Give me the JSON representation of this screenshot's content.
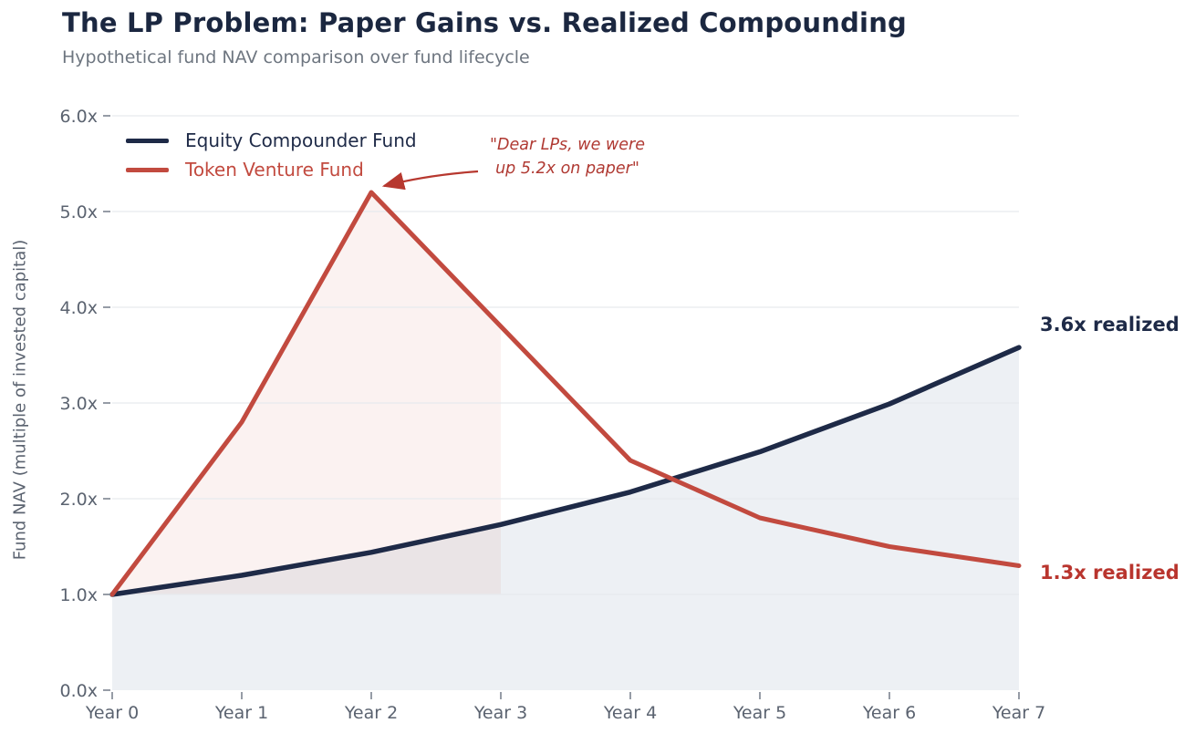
{
  "header": {
    "title": "The LP Problem: Paper Gains vs. Realized Compounding",
    "subtitle": "Hypothetical fund NAV comparison over fund lifecycle"
  },
  "chart_data": {
    "type": "line",
    "title": "The LP Problem: Paper Gains vs. Realized Compounding",
    "subtitle": "Hypothetical fund NAV comparison over fund lifecycle",
    "xlabel": "",
    "ylabel": "Fund NAV (multiple of invested capital)",
    "categories": [
      "Year 0",
      "Year 1",
      "Year 2",
      "Year 3",
      "Year 4",
      "Year 5",
      "Year 6",
      "Year 7"
    ],
    "x": [
      0,
      1,
      2,
      3,
      4,
      5,
      6,
      7
    ],
    "ylim": [
      0,
      6
    ],
    "y_ticks": [
      0,
      1,
      2,
      3,
      4,
      5,
      6
    ],
    "y_tick_labels": [
      "0.0x",
      "1.0x",
      "2.0x",
      "3.0x",
      "4.0x",
      "5.0x",
      "6.0x"
    ],
    "grid": "horizontal gridlines only",
    "legend_position": "upper left",
    "series": [
      {
        "name": "Equity Compounder Fund",
        "color": "#1e2a47",
        "line_width": 5.5,
        "values": [
          1.0,
          1.2,
          1.44,
          1.73,
          2.07,
          2.49,
          2.99,
          3.58
        ],
        "fill": {
          "to_value": 0,
          "from_x": 0,
          "to_x": 7,
          "color": "#edf0f4"
        }
      },
      {
        "name": "Token Venture Fund",
        "color": "#c24a3f",
        "line_width": 5,
        "values": [
          1.0,
          2.8,
          5.2,
          3.8,
          2.4,
          1.8,
          1.5,
          1.3
        ],
        "fill": {
          "to_value": 1,
          "from_x": 0,
          "to_x": 3,
          "color": "rgba(194,74,63,0.07)"
        }
      }
    ],
    "annotations": [
      {
        "id": "paper-peak",
        "line1": "\"Dear LPs, we were",
        "line2": "up 5.2x on paper\"",
        "color": "#b03a33"
      },
      {
        "id": "equity-end",
        "text": "3.6x realized",
        "color": "#1e2a47"
      },
      {
        "id": "token-end",
        "text": "1.3x realized",
        "color": "#b9352e"
      }
    ],
    "gridline_color": "#e7eaee",
    "tick_color": "#7c8490"
  }
}
